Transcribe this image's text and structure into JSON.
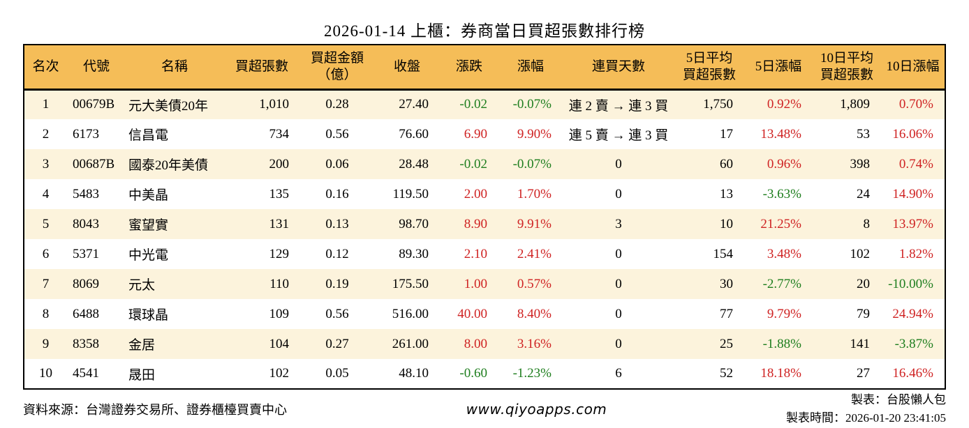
{
  "title": "2026-01-14 上櫃：券商當日買超張數排行榜",
  "colors": {
    "up": "#cf2222",
    "down": "#1e7e1e",
    "header_bg": "#f5bd58",
    "row_alt_bg": "#fcf3dc",
    "border": "#000000"
  },
  "table": {
    "headers": [
      "名次",
      "代號",
      "名稱",
      "買超張數",
      "買超金額\n（億）",
      "收盤",
      "漲跌",
      "漲幅",
      "連買天數",
      "5日平均\n買超張數",
      "5日漲幅",
      "10日平均\n買超張數",
      "10日漲幅"
    ],
    "rows": [
      {
        "rank": "1",
        "code": "00679B",
        "name": "元大美債20年",
        "net_buy": "1,010",
        "amount": "0.28",
        "close": "27.40",
        "change": "-0.02",
        "change_pct": "-0.07%",
        "streak": "連 2 賣 → 連 3 買",
        "avg5": "1,750",
        "pct5": "0.92%",
        "avg10": "1,809",
        "pct10": "0.70%"
      },
      {
        "rank": "2",
        "code": "6173",
        "name": "信昌電",
        "net_buy": "734",
        "amount": "0.56",
        "close": "76.60",
        "change": "6.90",
        "change_pct": "9.90%",
        "streak": "連 5 賣 → 連 3 買",
        "avg5": "17",
        "pct5": "13.48%",
        "avg10": "53",
        "pct10": "16.06%"
      },
      {
        "rank": "3",
        "code": "00687B",
        "name": "國泰20年美債",
        "net_buy": "200",
        "amount": "0.06",
        "close": "28.48",
        "change": "-0.02",
        "change_pct": "-0.07%",
        "streak": "0",
        "avg5": "60",
        "pct5": "0.96%",
        "avg10": "398",
        "pct10": "0.74%"
      },
      {
        "rank": "4",
        "code": "5483",
        "name": "中美晶",
        "net_buy": "135",
        "amount": "0.16",
        "close": "119.50",
        "change": "2.00",
        "change_pct": "1.70%",
        "streak": "0",
        "avg5": "13",
        "pct5": "-3.63%",
        "avg10": "24",
        "pct10": "14.90%"
      },
      {
        "rank": "5",
        "code": "8043",
        "name": "蜜望實",
        "net_buy": "131",
        "amount": "0.13",
        "close": "98.70",
        "change": "8.90",
        "change_pct": "9.91%",
        "streak": "3",
        "avg5": "10",
        "pct5": "21.25%",
        "avg10": "8",
        "pct10": "13.97%"
      },
      {
        "rank": "6",
        "code": "5371",
        "name": "中光電",
        "net_buy": "129",
        "amount": "0.12",
        "close": "89.30",
        "change": "2.10",
        "change_pct": "2.41%",
        "streak": "0",
        "avg5": "154",
        "pct5": "3.48%",
        "avg10": "102",
        "pct10": "1.82%"
      },
      {
        "rank": "7",
        "code": "8069",
        "name": "元太",
        "net_buy": "110",
        "amount": "0.19",
        "close": "175.50",
        "change": "1.00",
        "change_pct": "0.57%",
        "streak": "0",
        "avg5": "30",
        "pct5": "-2.77%",
        "avg10": "20",
        "pct10": "-10.00%"
      },
      {
        "rank": "8",
        "code": "6488",
        "name": "環球晶",
        "net_buy": "109",
        "amount": "0.56",
        "close": "516.00",
        "change": "40.00",
        "change_pct": "8.40%",
        "streak": "0",
        "avg5": "77",
        "pct5": "9.79%",
        "avg10": "79",
        "pct10": "24.94%"
      },
      {
        "rank": "9",
        "code": "8358",
        "name": "金居",
        "net_buy": "104",
        "amount": "0.27",
        "close": "261.00",
        "change": "8.00",
        "change_pct": "3.16%",
        "streak": "0",
        "avg5": "25",
        "pct5": "-1.88%",
        "avg10": "141",
        "pct10": "-3.87%"
      },
      {
        "rank": "10",
        "code": "4541",
        "name": "晟田",
        "net_buy": "102",
        "amount": "0.05",
        "close": "48.10",
        "change": "-0.60",
        "change_pct": "-1.23%",
        "streak": "6",
        "avg5": "52",
        "pct5": "18.18%",
        "avg10": "27",
        "pct10": "16.46%"
      }
    ]
  },
  "footer": {
    "source": "資料來源：台灣證券交易所、證券櫃檯買賣中心",
    "site": "www.qiyoapps.com",
    "author": "製表：台股懶人包",
    "timestamp": "製表時間：2026-01-20 23:41:05"
  }
}
